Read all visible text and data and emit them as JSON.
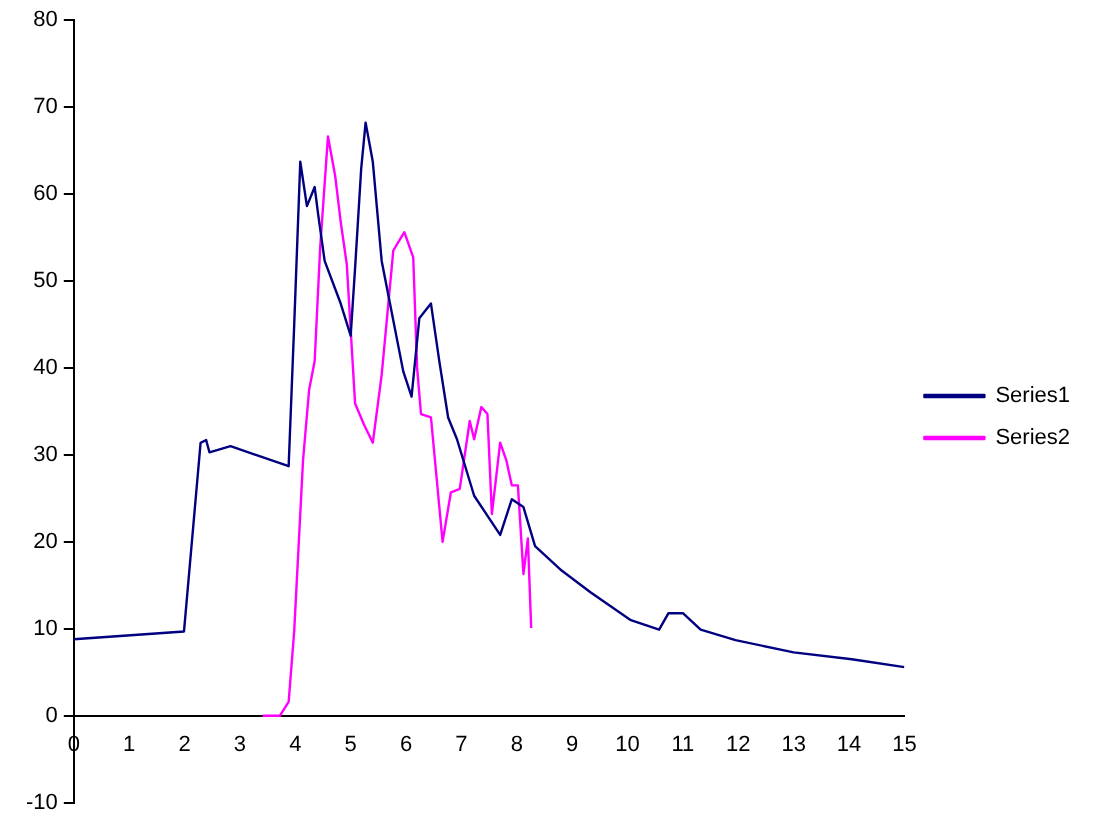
{
  "chart_data": {
    "type": "line",
    "xlim": [
      0,
      15
    ],
    "ylim": [
      -10,
      80
    ],
    "xticks": [
      0,
      1,
      2,
      3,
      4,
      5,
      6,
      7,
      8,
      9,
      10,
      11,
      12,
      13,
      14,
      15
    ],
    "yticks": [
      -10,
      0,
      10,
      20,
      30,
      40,
      50,
      60,
      70,
      80
    ],
    "grid": false,
    "legend": "right",
    "marker": "none",
    "line_style": "solid",
    "series": [
      {
        "name": "Series1",
        "color": "#000080",
        "x": [
          0,
          1.99,
          2.29,
          2.39,
          2.45,
          2.83,
          3.88,
          3.98,
          4.09,
          4.21,
          4.35,
          4.41,
          4.53,
          4.82,
          5.0,
          5.08,
          5.19,
          5.27,
          5.4,
          5.56,
          5.71,
          5.95,
          6.1,
          6.24,
          6.45,
          6.6,
          6.76,
          6.92,
          7.23,
          7.7,
          7.91,
          8.12,
          8.33,
          8.81,
          9.33,
          10.06,
          10.57,
          10.74,
          11.0,
          11.32,
          11.95,
          13.0,
          14.05,
          15.0
        ],
        "values": [
          8.8,
          9.7,
          31.4,
          31.7,
          30.3,
          31,
          28.7,
          44.9,
          63.7,
          58.6,
          60.8,
          57.8,
          52.3,
          47.4,
          43.7,
          51.5,
          62.9,
          68.2,
          63.7,
          52.3,
          47.4,
          39.6,
          36.7,
          45.7,
          47.4,
          40.8,
          34.3,
          31.8,
          25.3,
          20.8,
          24.9,
          24.0,
          19.5,
          16.7,
          14.2,
          11.0,
          9.9,
          11.8,
          11.8,
          9.9,
          8.7,
          7.3,
          6.5,
          5.6
        ]
      },
      {
        "name": "Series2",
        "color": "#ff00ff",
        "x": [
          3.41,
          3.72,
          3.88,
          3.98,
          4.14,
          4.25,
          4.35,
          4.45,
          4.59,
          4.72,
          4.82,
          4.93,
          5.08,
          5.24,
          5.4,
          5.56,
          5.77,
          5.92,
          5.97,
          6.13,
          6.2,
          6.27,
          6.45,
          6.66,
          6.81,
          6.97,
          7.15,
          7.23,
          7.36,
          7.47,
          7.55,
          7.7,
          7.81,
          7.91,
          8.02,
          8.12,
          8.2,
          8.26
        ],
        "values": [
          0,
          0,
          1.6,
          9.7,
          29.4,
          37.5,
          40.8,
          53.9,
          66.6,
          62.1,
          56.8,
          51.9,
          35.9,
          33.5,
          31.4,
          39.2,
          53.5,
          55.1,
          55.6,
          52.7,
          40.0,
          34.7,
          34.3,
          20.0,
          25.7,
          26.1,
          33.9,
          31.8,
          35.5,
          34.7,
          23.2,
          31.4,
          29.4,
          26.5,
          26.5,
          16.3,
          20.4,
          10.1
        ]
      }
    ]
  }
}
